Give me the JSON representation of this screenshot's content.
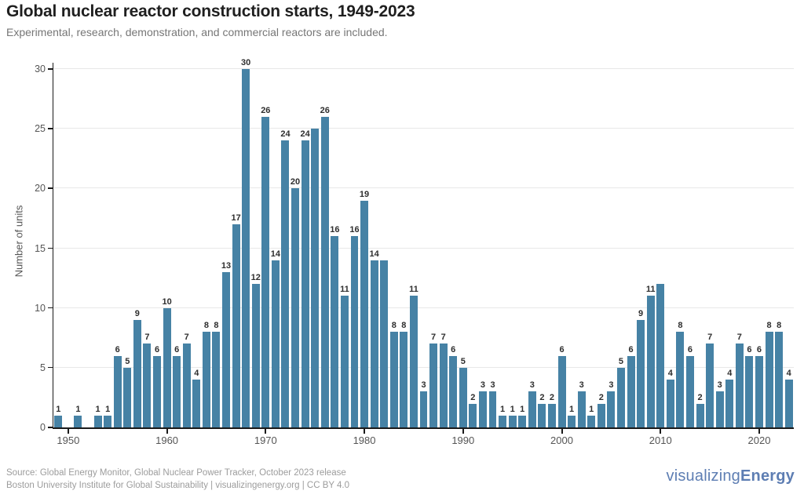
{
  "header": {
    "title": "Global nuclear reactor construction starts, 1949-2023",
    "subtitle": "Experimental, research, demonstration, and commercial reactors are included."
  },
  "chart_data": {
    "type": "bar",
    "title": "Global nuclear reactor construction starts, 1949-2023",
    "xlabel": "",
    "ylabel": "Number of units",
    "ylim": [
      0,
      30
    ],
    "y_ticks": [
      0,
      5,
      10,
      15,
      20,
      25,
      30
    ],
    "x_ticks": [
      1950,
      1960,
      1970,
      1980,
      1990,
      2000,
      2010,
      2020
    ],
    "grid": "horizontal-light",
    "legend": "none",
    "bar_color": "#4682A5",
    "categories": [
      1949,
      1950,
      1951,
      1952,
      1953,
      1954,
      1955,
      1956,
      1957,
      1958,
      1959,
      1960,
      1961,
      1962,
      1963,
      1964,
      1965,
      1966,
      1967,
      1968,
      1969,
      1970,
      1971,
      1972,
      1973,
      1974,
      1975,
      1976,
      1977,
      1978,
      1979,
      1980,
      1981,
      1982,
      1983,
      1984,
      1985,
      1986,
      1987,
      1988,
      1989,
      1990,
      1991,
      1992,
      1993,
      1994,
      1995,
      1996,
      1997,
      1998,
      1999,
      2000,
      2001,
      2002,
      2003,
      2004,
      2005,
      2006,
      2007,
      2008,
      2009,
      2010,
      2011,
      2012,
      2013,
      2014,
      2015,
      2016,
      2017,
      2018,
      2019,
      2020,
      2021,
      2022,
      2023
    ],
    "values": [
      1,
      0,
      1,
      0,
      1,
      1,
      6,
      5,
      9,
      7,
      6,
      10,
      6,
      7,
      4,
      8,
      8,
      13,
      17,
      30,
      12,
      26,
      14,
      24,
      20,
      24,
      25,
      26,
      16,
      11,
      16,
      19,
      14,
      14,
      8,
      8,
      11,
      3,
      7,
      7,
      6,
      5,
      2,
      3,
      3,
      1,
      1,
      1,
      3,
      2,
      2,
      6,
      1,
      3,
      1,
      2,
      3,
      5,
      6,
      9,
      11,
      12,
      4,
      8,
      6,
      2,
      7,
      3,
      4,
      7,
      6,
      6,
      8,
      8,
      4
    ],
    "unlabeled_years": [
      1975,
      1982,
      2010
    ]
  },
  "footer": {
    "source_line1": "Source: Global Energy Monitor, Global Nuclear Power Tracker, October 2023 release",
    "source_line2": "Boston University Institute for Global Sustainability | visualizingenergy.org | CC BY 4.0",
    "logo_regular": "visualizing",
    "logo_bold": "Energy"
  },
  "colors": {
    "bar": "#4682A5",
    "title": "#1f1f1f",
    "subtitle": "#767676",
    "axis_text": "#555555",
    "axis_line": "#1a1a1a",
    "gridline": "#e8e8e8",
    "footer_text": "#9c9c9c",
    "logo": "#5e7eb3"
  }
}
